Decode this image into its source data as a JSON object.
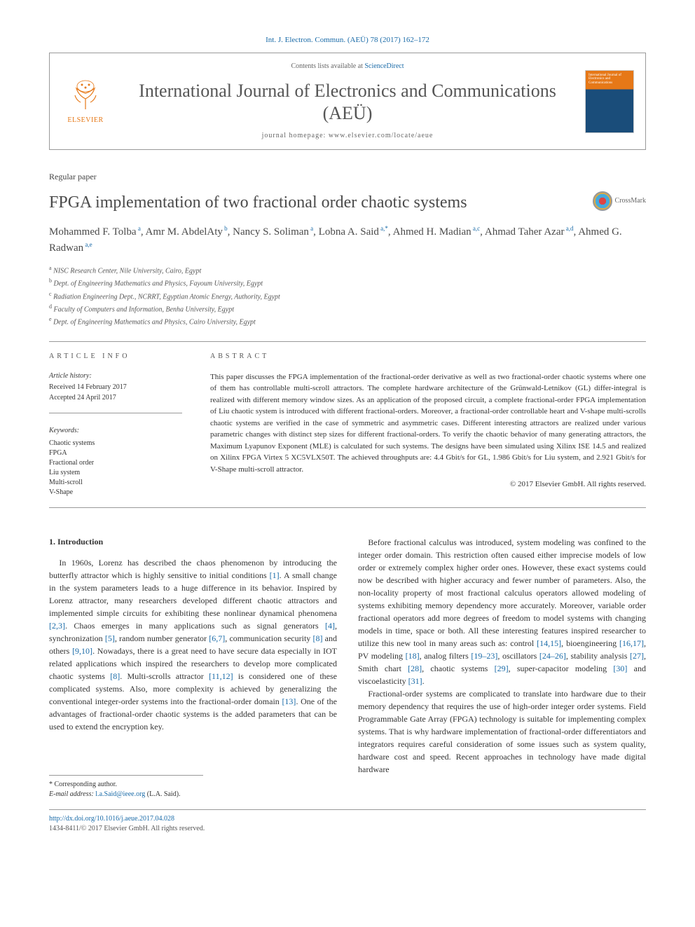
{
  "citation": "Int. J. Electron. Commun. (AEÜ) 78 (2017) 162–172",
  "header": {
    "contents_prefix": "Contents lists available at ",
    "contents_link": "ScienceDirect",
    "journal_name": "International Journal of Electronics and Communications (AEÜ)",
    "homepage_label": "journal homepage: www.elsevier.com/locate/aeue",
    "elsevier_label": "ELSEVIER",
    "cover_label": "International Journal of Electronics and Communications"
  },
  "paper_type": "Regular paper",
  "title": "FPGA implementation of two fractional order chaotic systems",
  "crossmark_label": "CrossMark",
  "authors_html": "Mohammed F. Tolba",
  "authors": [
    {
      "name": "Mohammed F. Tolba",
      "aff": "a"
    },
    {
      "name": "Amr M. AbdelAty",
      "aff": "b"
    },
    {
      "name": "Nancy S. Soliman",
      "aff": "a"
    },
    {
      "name": "Lobna A. Said",
      "aff": "a,*"
    },
    {
      "name": "Ahmed H. Madian",
      "aff": "a,c"
    },
    {
      "name": "Ahmad Taher Azar",
      "aff": "a,d"
    },
    {
      "name": "Ahmed G. Radwan",
      "aff": "a,e"
    }
  ],
  "affiliations": [
    {
      "sup": "a",
      "text": "NISC Research Center, Nile University, Cairo, Egypt"
    },
    {
      "sup": "b",
      "text": "Dept. of Engineering Mathematics and Physics, Fayoum University, Egypt"
    },
    {
      "sup": "c",
      "text": "Radiation Engineering Dept., NCRRT, Egyptian Atomic Energy, Authority, Egypt"
    },
    {
      "sup": "d",
      "text": "Faculty of Computers and Information, Benha University, Egypt"
    },
    {
      "sup": "e",
      "text": "Dept. of Engineering Mathematics and Physics, Cairo University, Egypt"
    }
  ],
  "article_info": {
    "head": "ARTICLE INFO",
    "history_label": "Article history:",
    "received": "Received 14 February 2017",
    "accepted": "Accepted 24 April 2017",
    "keywords_label": "Keywords:",
    "keywords": [
      "Chaotic systems",
      "FPGA",
      "Fractional order",
      "Liu system",
      "Multi-scroll",
      "V-Shape"
    ]
  },
  "abstract": {
    "head": "ABSTRACT",
    "body": "This paper discusses the FPGA implementation of the fractional-order derivative as well as two fractional-order chaotic systems where one of them has controllable multi-scroll attractors. The complete hardware architecture of the Grünwald-Letnikov (GL) differ-integral is realized with different memory window sizes. As an application of the proposed circuit, a complete fractional-order FPGA implementation of Liu chaotic system is introduced with different fractional-orders. Moreover, a fractional-order controllable heart and V-shape multi-scrolls chaotic systems are verified in the case of symmetric and asymmetric cases. Different interesting attractors are realized under various parametric changes with distinct step sizes for different fractional-orders. To verify the chaotic behavior of many generating attractors, the Maximum Lyapunov Exponent (MLE) is calculated for such systems. The designs have been simulated using Xilinx ISE 14.5 and realized on Xilinx FPGA Virtex 5 XC5VLX50T. The achieved throughputs are: 4.4 Gbit/s for GL, 1.986 Gbit/s for Liu system, and 2.921 Gbit/s for V-Shape multi-scroll attractor.",
    "copyright": "© 2017 Elsevier GmbH. All rights reserved."
  },
  "intro": {
    "head": "1. Introduction",
    "p1_pre": "In 1960s, Lorenz has described the chaos phenomenon by introducing the butterfly attractor which is highly sensitive to initial conditions ",
    "p1_r1": "[1]",
    "p1_mid1": ". A small change in the system parameters leads to a huge difference in its behavior. Inspired by Lorenz attractor, many researchers developed different chaotic attractors and implemented simple circuits for exhibiting these nonlinear dynamical phenomena ",
    "p1_r2": "[2,3]",
    "p1_mid2": ". Chaos emerges in many applications such as signal generators ",
    "p1_r3": "[4]",
    "p1_mid3": ", synchronization ",
    "p1_r4": "[5]",
    "p1_mid4": ", random number generator ",
    "p1_r5": "[6,7]",
    "p1_mid5": ", communication security ",
    "p1_r6": "[8]",
    "p1_mid6": " and others ",
    "p1_r7": "[9,10]",
    "p1_mid7": ". Nowadays, there is a great need to have secure data especially in IOT related applications which inspired the researchers to develop more complicated chaotic systems ",
    "p1_r8": "[8]",
    "p1_mid8": ". Multi-scrolls attractor ",
    "p1_r9": "[11,12]",
    "p1_mid9": " is considered one of these complicated systems. Also, more complexity is achieved by generalizing the conventional integer-order systems into the fractional-order domain ",
    "p1_r10": "[13]",
    "p1_end": ". One of the advantages of fractional-order chaotic systems is the added parameters that can be used to extend the encryption key.",
    "p2_pre": "Before fractional calculus was introduced, system modeling was confined to the integer order domain. This restriction often caused either imprecise models of low order or extremely complex higher order ones. However, these exact systems could now be described with higher accuracy and fewer number of parameters. Also, the non-locality property of most fractional calculus operators allowed modeling of systems exhibiting memory dependency more accurately. Moreover, variable order fractional operators add more degrees of freedom to model systems with changing models in time, space or both. All these interesting features inspired researcher to utilize this new tool in many areas such as: control ",
    "p2_r1": "[14,15]",
    "p2_mid1": ", bioengineering ",
    "p2_r2": "[16,17]",
    "p2_mid2": ", PV modeling ",
    "p2_r3": "[18]",
    "p2_mid3": ", analog filters ",
    "p2_r4": "[19–23]",
    "p2_mid4": ", oscillators ",
    "p2_r5": "[24–26]",
    "p2_mid5": ", stability analysis ",
    "p2_r6": "[27]",
    "p2_mid6": ", Smith chart ",
    "p2_r7": "[28]",
    "p2_mid7": ", chaotic systems ",
    "p2_r8": "[29]",
    "p2_mid8": ", super-capacitor modeling ",
    "p2_r9": "[30]",
    "p2_mid9": " and viscoelasticity ",
    "p2_r10": "[31]",
    "p2_end": ".",
    "p3": "Fractional-order systems are complicated to translate into hardware due to their memory dependency that requires the use of high-order integer order systems. Field Programmable Gate Array (FPGA) technology is suitable for implementing complex systems. That is why hardware implementation of fractional-order differentiators and integrators requires careful consideration of some issues such as system quality, hardware cost and speed. Recent approaches in technology have made digital hardware"
  },
  "corr": {
    "star": "* Corresponding author.",
    "email_label": "E-mail address: ",
    "email": "l.a.Said@ieee.org",
    "email_suffix": " (L.A. Said)."
  },
  "footer": {
    "doi": "http://dx.doi.org/10.1016/j.aeue.2017.04.028",
    "issn": "1434-8411/© 2017 Elsevier GmbH. All rights reserved."
  },
  "colors": {
    "link": "#1a6ba8",
    "elsevier_orange": "#e67817",
    "text": "#333333",
    "heading_gray": "#4a4a4a"
  },
  "typography": {
    "body_font": "Georgia, 'Times New Roman', serif",
    "title_fontsize": 24,
    "journal_fontsize": 26,
    "body_fontsize": 12,
    "abstract_fontsize": 11,
    "footnote_fontsize": 10
  }
}
